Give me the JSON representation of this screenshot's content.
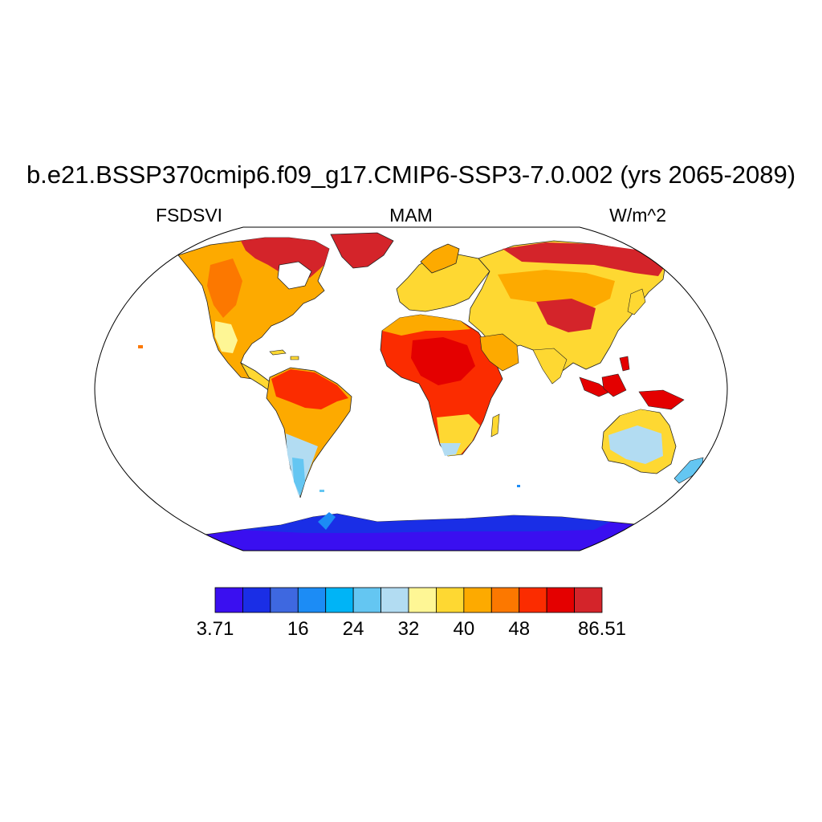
{
  "title": "b.e21.BSSP370cmip6.f09_g17.CMIP6-SSP3-7.0.002 (yrs 2065-2089)",
  "left_string": "FSDSVI",
  "center_string": "MAM",
  "right_string": "W/m^2",
  "colorbar": {
    "colors": [
      "#3a0ff0",
      "#1a2ee6",
      "#3e68e0",
      "#1c8cf5",
      "#00b4f6",
      "#64c6f2",
      "#b2dcf2",
      "#fef695",
      "#fed832",
      "#fdaa00",
      "#fc7800",
      "#fb2c00",
      "#e40000",
      "#d4242a"
    ],
    "labels": [
      {
        "text": "3.71",
        "boundary": 0
      },
      {
        "text": "16",
        "boundary": 3
      },
      {
        "text": "24",
        "boundary": 5
      },
      {
        "text": "32",
        "boundary": 7
      },
      {
        "text": "40",
        "boundary": 9
      },
      {
        "text": "48",
        "boundary": 11
      },
      {
        "text": "86.51",
        "boundary": 14
      }
    ]
  },
  "projection": "Robinson"
}
